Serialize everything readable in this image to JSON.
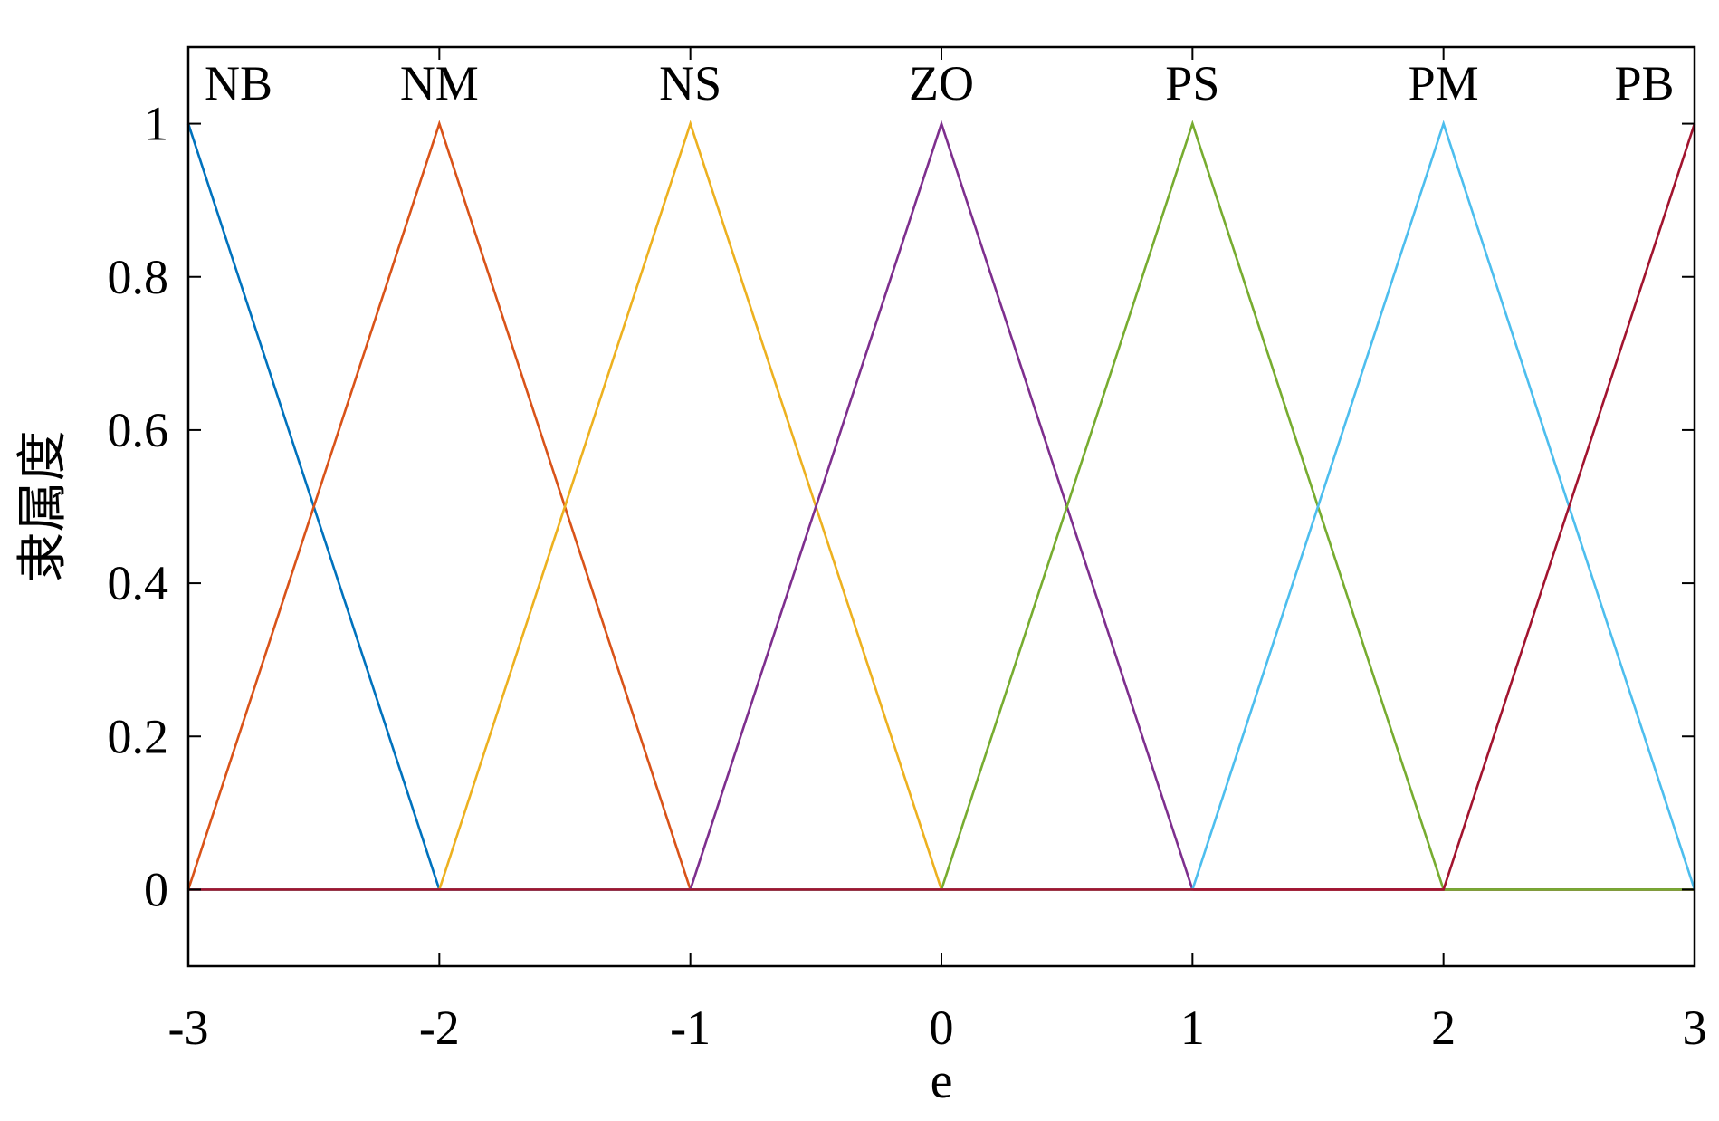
{
  "chart_data": {
    "type": "line",
    "title": "",
    "xlabel": "e",
    "ylabel": "隶属度",
    "xlim": [
      -3,
      3
    ],
    "ylim": [
      -0.1,
      1.1
    ],
    "grid": false,
    "legend": "none",
    "xticks": [
      -3,
      -2,
      -1,
      0,
      1,
      2,
      3
    ],
    "xtick_labels": [
      "-3",
      "-2",
      "-1",
      "0",
      "1",
      "2",
      "3"
    ],
    "yticks": [
      0,
      0.2,
      0.4,
      0.6,
      0.8,
      1
    ],
    "ytick_labels": [
      "0",
      "0.2",
      "0.4",
      "0.6",
      "0.8",
      "1"
    ],
    "series": [
      {
        "name": "NB",
        "color": "#0072BD",
        "x": [
          -3,
          -2,
          3
        ],
        "y": [
          1,
          0,
          0
        ]
      },
      {
        "name": "NM",
        "color": "#D95319",
        "x": [
          -3,
          -2,
          -1,
          3
        ],
        "y": [
          0,
          1,
          0,
          0
        ]
      },
      {
        "name": "NS",
        "color": "#EDB120",
        "x": [
          -3,
          -2,
          -1,
          0,
          3
        ],
        "y": [
          0,
          0,
          1,
          0,
          0
        ]
      },
      {
        "name": "ZO",
        "color": "#7E2F8E",
        "x": [
          -3,
          -1,
          0,
          1,
          3
        ],
        "y": [
          0,
          0,
          1,
          0,
          0
        ]
      },
      {
        "name": "PS",
        "color": "#77AC30",
        "x": [
          -3,
          0,
          1,
          2,
          3
        ],
        "y": [
          0,
          0,
          1,
          0,
          0
        ]
      },
      {
        "name": "PM",
        "color": "#4DBEEE",
        "x": [
          -3,
          1,
          2,
          3
        ],
        "y": [
          0,
          0,
          1,
          0
        ]
      },
      {
        "name": "PB",
        "color": "#A2142F",
        "x": [
          -3,
          2,
          3
        ],
        "y": [
          0,
          0,
          1
        ]
      }
    ],
    "series_label_positions": [
      -2.8,
      -2.0,
      -1.0,
      0.0,
      1.0,
      2.0,
      2.8
    ]
  }
}
